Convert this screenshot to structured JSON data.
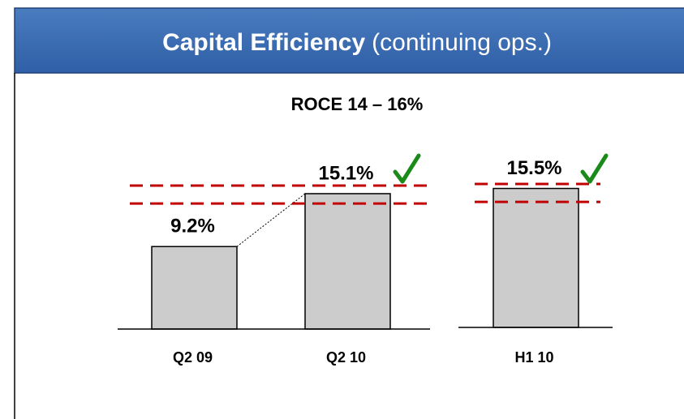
{
  "chart_data": {
    "type": "bar",
    "title": "Capital Efficiency",
    "title_note": "(continuing ops.)",
    "subtitle": "ROCE 14 – 16%",
    "categories": [
      "Q2 09",
      "Q2 10",
      "H1 10"
    ],
    "values": [
      9.2,
      15.1,
      15.5
    ],
    "value_labels": [
      "9.2%",
      "15.1%",
      "15.5%"
    ],
    "color": "#cccccc",
    "ylim": [
      0,
      16
    ],
    "reference_lines": [
      14,
      16
    ],
    "reference_color": "#c00000"
  }
}
